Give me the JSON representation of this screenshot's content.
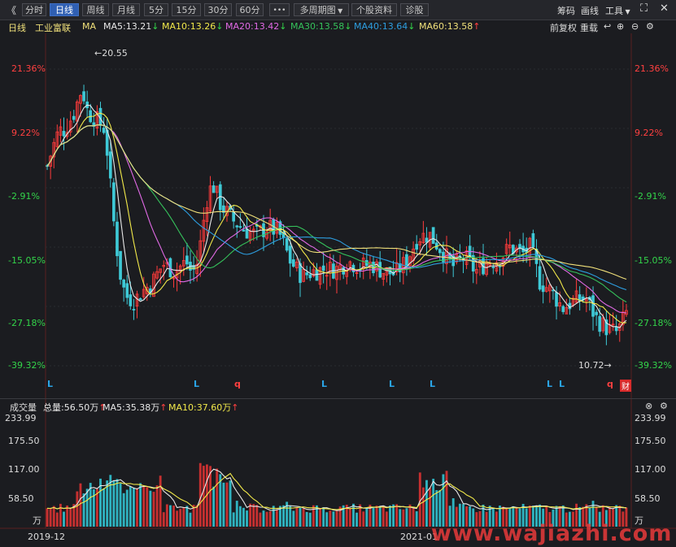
{
  "toolbar": {
    "back": "《",
    "tabs": [
      "分时",
      "日线",
      "周线",
      "月线",
      "5分",
      "15分",
      "30分",
      "60分"
    ],
    "active_tab": "日线",
    "more": "•••",
    "multi_period": "多周期图",
    "stock_info": "个股资料",
    "diagnose": "诊股",
    "right_items": [
      "筹码",
      "画线",
      "工具"
    ]
  },
  "ma_bar": {
    "period": "日线",
    "stock": "工业富联",
    "ma": "MA",
    "items": [
      {
        "text": "MA5:13.21",
        "arrow": "↓",
        "color": "#e8e8e8",
        "arrow_color": "#33d44a"
      },
      {
        "text": "MA10:13.26",
        "arrow": "↓",
        "color": "#f2e94a",
        "arrow_color": "#33d44a"
      },
      {
        "text": "MA20:13.42",
        "arrow": "↓",
        "color": "#e26ae6",
        "arrow_color": "#33d44a"
      },
      {
        "text": "MA30:13.58",
        "arrow": "↓",
        "color": "#35c25b",
        "arrow_color": "#33d44a"
      },
      {
        "text": "MA40:13.64",
        "arrow": "↓",
        "color": "#2d9ee0",
        "arrow_color": "#33d44a"
      },
      {
        "text": "MA60:13.58",
        "arrow": "↑",
        "color": "#f0e07a",
        "arrow_color": "#ff4040"
      }
    ],
    "adjust": "前复权",
    "reload": "重载"
  },
  "price_axis": {
    "ticks": [
      "21.36%",
      "9.22%",
      "-2.91%",
      "-15.05%",
      "-27.18%",
      "-39.32%"
    ]
  },
  "annotations": {
    "high": "←20.55",
    "low": "10.72→",
    "markers": [
      "L",
      "L",
      "q",
      "L",
      "L",
      "L",
      "L",
      "L",
      "q"
    ],
    "fin": "财"
  },
  "volume": {
    "title": "成交量",
    "total": "总量:56.50万",
    "total_arrow": "↑",
    "ma5": "MA5:35.38万",
    "ma5_arrow": "↑",
    "ma10": "MA10:37.60万",
    "ma10_arrow": "↑",
    "ticks": [
      "233.99",
      "175.50",
      "117.00",
      "58.50"
    ],
    "unit": "万"
  },
  "dates": [
    "2019-12",
    "2021-01"
  ],
  "watermark": "www.wajiazhi.com",
  "chart_data": {
    "type": "line",
    "price_series": [
      {
        "name": "MA5",
        "color": "#e8e8e8"
      },
      {
        "name": "MA10",
        "color": "#f2e94a"
      },
      {
        "name": "MA20",
        "color": "#e26ae6"
      },
      {
        "name": "MA30",
        "color": "#35c25b"
      },
      {
        "name": "MA40",
        "color": "#2d9ee0"
      },
      {
        "name": "MA60",
        "color": "#f0e07a"
      }
    ],
    "ylim_pct": [
      -39.32,
      21.36
    ],
    "ytick_pct": [
      21.36,
      9.22,
      -2.91,
      -15.05,
      -27.18,
      -39.32
    ],
    "price_max": 20.55,
    "price_min": 10.72,
    "volume_ylim": [
      0,
      233.99
    ],
    "volume_ticks": [
      233.99,
      175.5,
      117.0,
      58.5
    ],
    "close_path": [
      [
        0,
        1.5
      ],
      [
        0.01,
        5.5
      ],
      [
        0.02,
        8.8
      ],
      [
        0.03,
        9.0
      ],
      [
        0.045,
        12.0
      ],
      [
        0.06,
        17.5
      ],
      [
        0.07,
        12.5
      ],
      [
        0.085,
        11.0
      ],
      [
        0.1,
        9.0
      ],
      [
        0.115,
        -10.0
      ],
      [
        0.125,
        -20.0
      ],
      [
        0.135,
        -25.0
      ],
      [
        0.15,
        -26.0
      ],
      [
        0.165,
        -24.0
      ],
      [
        0.18,
        -22.5
      ],
      [
        0.2,
        -18.5
      ],
      [
        0.22,
        -20.0
      ],
      [
        0.24,
        -18.0
      ],
      [
        0.25,
        -20.5
      ],
      [
        0.26,
        -18.0
      ],
      [
        0.275,
        -5.5
      ],
      [
        0.285,
        -2.0
      ],
      [
        0.3,
        -6.5
      ],
      [
        0.32,
        -9.5
      ],
      [
        0.34,
        -11.5
      ],
      [
        0.36,
        -12.5
      ],
      [
        0.38,
        -11.0
      ],
      [
        0.4,
        -12.0
      ],
      [
        0.42,
        -18.0
      ],
      [
        0.44,
        -21.0
      ],
      [
        0.46,
        -20.0
      ],
      [
        0.48,
        -19.5
      ],
      [
        0.5,
        -19.5
      ],
      [
        0.52,
        -18.0
      ],
      [
        0.54,
        -19.0
      ],
      [
        0.56,
        -18.5
      ],
      [
        0.58,
        -20.0
      ],
      [
        0.6,
        -20.5
      ],
      [
        0.62,
        -18.0
      ],
      [
        0.64,
        -13.0
      ],
      [
        0.66,
        -12.5
      ],
      [
        0.68,
        -15.5
      ],
      [
        0.7,
        -19.0
      ],
      [
        0.72,
        -17.0
      ],
      [
        0.74,
        -20.0
      ],
      [
        0.76,
        -18.0
      ],
      [
        0.78,
        -17.5
      ],
      [
        0.8,
        -15.0
      ],
      [
        0.82,
        -16.5
      ],
      [
        0.835,
        -15.0
      ],
      [
        0.85,
        -22.0
      ],
      [
        0.87,
        -24.0
      ],
      [
        0.89,
        -27.5
      ],
      [
        0.91,
        -26.0
      ],
      [
        0.93,
        -25.5
      ],
      [
        0.95,
        -30.0
      ],
      [
        0.97,
        -32.0
      ],
      [
        0.985,
        -32.5
      ],
      [
        1.0,
        -28.5
      ]
    ]
  }
}
